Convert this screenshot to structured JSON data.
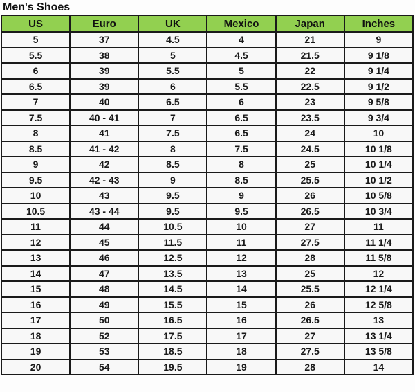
{
  "title": "Men's Shoes",
  "colors": {
    "header_bg": "#92d050",
    "border": "#1a1a1a",
    "cell_bg": "#f8f8f8",
    "text": "#111111"
  },
  "chart_data": {
    "type": "table",
    "title": "Men's Shoes",
    "columns": [
      "US",
      "Euro",
      "UK",
      "Mexico",
      "Japan",
      "Inches"
    ],
    "rows": [
      [
        "5",
        "37",
        "4.5",
        "4",
        "21",
        "9"
      ],
      [
        "5.5",
        "38",
        "5",
        "4.5",
        "21.5",
        "9 1/8"
      ],
      [
        "6",
        "39",
        "5.5",
        "5",
        "22",
        "9 1/4"
      ],
      [
        "6.5",
        "39",
        "6",
        "5.5",
        "22.5",
        "9 1/2"
      ],
      [
        "7",
        "40",
        "6.5",
        "6",
        "23",
        "9 5/8"
      ],
      [
        "7.5",
        "40 - 41",
        "7",
        "6.5",
        "23.5",
        "9 3/4"
      ],
      [
        "8",
        "41",
        "7.5",
        "6.5",
        "24",
        "10"
      ],
      [
        "8.5",
        "41 - 42",
        "8",
        "7.5",
        "24.5",
        "10 1/8"
      ],
      [
        "9",
        "42",
        "8.5",
        "8",
        "25",
        "10 1/4"
      ],
      [
        "9.5",
        "42 - 43",
        "9",
        "8.5",
        "25.5",
        "10 1/2"
      ],
      [
        "10",
        "43",
        "9.5",
        "9",
        "26",
        "10 5/8"
      ],
      [
        "10.5",
        "43 - 44",
        "9.5",
        "9.5",
        "26.5",
        "10 3/4"
      ],
      [
        "11",
        "44",
        "10.5",
        "10",
        "27",
        "11"
      ],
      [
        "12",
        "45",
        "11.5",
        "11",
        "27.5",
        "11 1/4"
      ],
      [
        "13",
        "46",
        "12.5",
        "12",
        "28",
        "11 5/8"
      ],
      [
        "14",
        "47",
        "13.5",
        "13",
        "25",
        "12"
      ],
      [
        "15",
        "48",
        "14.5",
        "14",
        "25.5",
        "12 1/4"
      ],
      [
        "16",
        "49",
        "15.5",
        "15",
        "26",
        "12 5/8"
      ],
      [
        "17",
        "50",
        "16.5",
        "16",
        "26.5",
        "13"
      ],
      [
        "18",
        "52",
        "17.5",
        "17",
        "27",
        "13 1/4"
      ],
      [
        "19",
        "53",
        "18.5",
        "18",
        "27.5",
        "13 5/8"
      ],
      [
        "20",
        "54",
        "19.5",
        "19",
        "28",
        "14"
      ]
    ]
  }
}
